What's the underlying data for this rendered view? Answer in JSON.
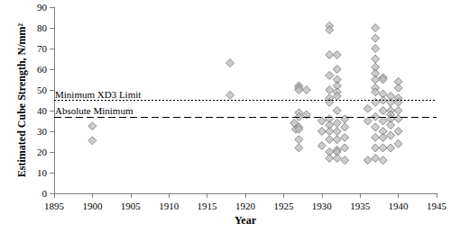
{
  "chart_data": {
    "type": "scatter",
    "x_label": "Year",
    "y_label": "Estimated Cube Strength, N/mm²",
    "x": [
      1900,
      1900,
      1918,
      1918,
      1926.4,
      1926.6,
      1927,
      1927,
      1927,
      1927,
      1927,
      1927,
      1927,
      1927,
      1927,
      1928,
      1928,
      1930,
      1930,
      1930,
      1931,
      1931,
      1931,
      1931,
      1931,
      1931,
      1931,
      1931,
      1931,
      1931,
      1931,
      1931,
      1931,
      1932,
      1932,
      1932,
      1932,
      1932,
      1932,
      1932,
      1932,
      1932,
      1932,
      1932,
      1932,
      1932,
      1933,
      1933,
      1933,
      1933,
      1933,
      1936,
      1936,
      1936,
      1937,
      1937,
      1937,
      1937,
      1937,
      1937,
      1937,
      1937,
      1937,
      1937,
      1937,
      1937,
      1937,
      1937,
      1937,
      1938,
      1938,
      1938,
      1938,
      1938,
      1938,
      1938,
      1938,
      1938,
      1938,
      1939,
      1939,
      1939,
      1939,
      1939,
      1939,
      1939,
      1939,
      1940,
      1940,
      1940,
      1940,
      1940,
      1940,
      1940,
      1940
    ],
    "values": [
      32.5,
      25.5,
      63,
      47.5,
      34,
      31,
      52,
      51,
      50,
      39,
      37,
      32,
      31,
      26,
      22,
      50,
      38,
      35,
      23,
      30,
      81,
      79,
      67,
      57,
      50,
      46,
      44,
      36,
      33,
      30,
      26,
      20,
      17,
      67,
      60,
      55,
      52,
      49,
      47,
      40,
      34,
      30,
      26,
      21,
      20,
      17,
      36,
      32,
      27,
      22,
      16,
      16,
      41,
      35,
      80,
      75,
      70,
      65,
      61,
      58,
      55,
      51,
      49,
      44,
      37,
      32,
      27,
      22,
      17,
      56,
      55,
      48,
      45,
      40,
      35,
      30,
      27,
      22,
      16,
      47,
      44,
      40,
      38,
      36,
      33,
      28,
      22,
      54,
      51,
      46,
      44,
      40,
      36,
      30,
      24
    ],
    "color": "#bfbfbf",
    "marker": "diamond",
    "xlim": [
      1895,
      1945
    ],
    "xticks": [
      1895,
      1900,
      1905,
      1910,
      1915,
      1920,
      1925,
      1930,
      1935,
      1940,
      1945
    ],
    "ylim": [
      0,
      90
    ],
    "yticks": [
      0,
      10,
      20,
      30,
      40,
      50,
      60,
      70,
      80,
      90
    ],
    "grid": false,
    "annotations": [
      {
        "text": "Minimum XD3 Limit",
        "y": 45,
        "line_style": "dotted"
      },
      {
        "text": "Absolute Minimum",
        "y": 37,
        "line_style": "dashed"
      }
    ]
  }
}
